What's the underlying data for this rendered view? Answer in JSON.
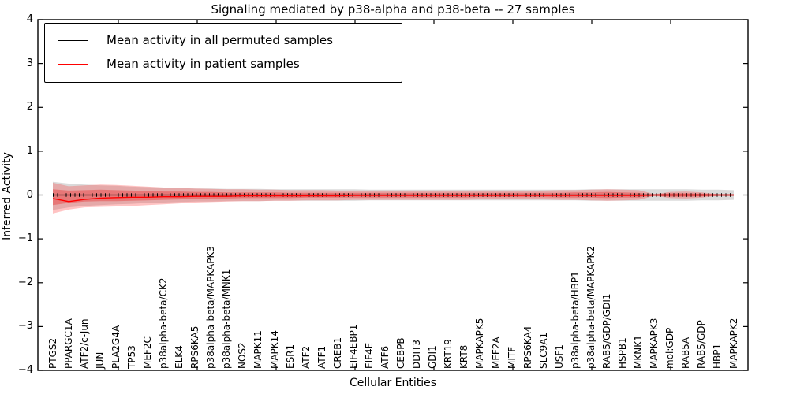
{
  "title": "Signaling mediated by p38-alpha and p38-beta -- 27 samples",
  "y_axis": {
    "label": "Inferred Activity",
    "lim": [
      -4,
      4
    ],
    "tick_values": [
      4,
      3,
      2,
      1,
      0,
      -1,
      -2,
      -3,
      -4
    ],
    "tick_labels": [
      "4",
      "3",
      "2",
      "1",
      "0",
      "−1",
      "−2",
      "−3",
      "−4"
    ]
  },
  "x_axis": {
    "label": "Cellular Entities"
  },
  "legend": {
    "items": [
      {
        "label": "Mean activity in all permuted samples",
        "color": "#000000"
      },
      {
        "label": "Mean activity in patient samples",
        "color": "#ff0000"
      }
    ]
  },
  "colors": {
    "frame": "#000000",
    "permuted_line": "#000000",
    "patient_line": "#ff0000",
    "permuted_band": "rgba(150,150,150,0.35)",
    "patient_band_outer": "rgba(255,55,55,0.30)",
    "patient_band_inner": "rgba(235,45,45,0.40)"
  },
  "chart_data": {
    "type": "line",
    "title": "Signaling mediated by p38-alpha and p38-beta -- 27 samples",
    "xlabel": "Cellular Entities",
    "ylabel": "Inferred Activity",
    "ylim": [
      -4,
      4
    ],
    "grid": false,
    "legend_position": "upper left",
    "categories": [
      "PTGS2",
      "PPARGC1A",
      "ATF2/c-Jun",
      "JUN",
      "PLA2G4A",
      "TP53",
      "MEF2C",
      "p38alpha-beta/CK2",
      "ELK4",
      "RPS6KA5",
      "p38alpha-beta/MAPKAPK3",
      "p38alpha-beta/MNK1",
      "NOS2",
      "MAPK11",
      "MAPK14",
      "ESR1",
      "ATF2",
      "ATF1",
      "CREB1",
      "EIF4EBP1",
      "EIF4E",
      "ATF6",
      "CEBPB",
      "DDIT3",
      "GDI1",
      "KRT19",
      "KRT8",
      "MAPKAPK5",
      "MEF2A",
      "MITF",
      "RPS6KA4",
      "SLC9A1",
      "USF1",
      "p38alpha-beta/HBP1",
      "p38alpha-beta/MAPKAPK2",
      "RAB5/GDP/GDI1",
      "HSPB1",
      "MKNK1",
      "MAPKAPK3",
      "mol:GDP",
      "RAB5A",
      "RAB5/GDP",
      "HBP1",
      "MAPKAPK2"
    ],
    "series": [
      {
        "name": "Mean activity in all permuted samples",
        "color": "#000000",
        "values": [
          0,
          0,
          0,
          0,
          0,
          0,
          0,
          0,
          0,
          0,
          0,
          0,
          0,
          0,
          0,
          0,
          0,
          0,
          0,
          0,
          0,
          0,
          0,
          0,
          0,
          0,
          0,
          0,
          0,
          0,
          0,
          0,
          0,
          0,
          0,
          0,
          0,
          0,
          0,
          0,
          0,
          0,
          0,
          0
        ]
      },
      {
        "name": "Mean activity in patient samples",
        "color": "#ff0000",
        "values": [
          -0.08,
          -0.15,
          -0.1,
          -0.07,
          -0.06,
          -0.05,
          -0.05,
          -0.04,
          -0.04,
          -0.03,
          -0.03,
          -0.03,
          -0.02,
          -0.02,
          -0.02,
          -0.02,
          -0.02,
          -0.02,
          -0.02,
          -0.01,
          -0.01,
          -0.01,
          -0.01,
          -0.01,
          -0.01,
          -0.01,
          -0.01,
          -0.01,
          -0.01,
          -0.01,
          -0.01,
          -0.01,
          -0.01,
          -0.01,
          -0.01,
          -0.01,
          -0.01,
          -0.01,
          0.0,
          0.0,
          0.0,
          0.0,
          0.0,
          0.0
        ]
      }
    ],
    "bands": [
      {
        "name": "permuted-samples-range",
        "color": "rgba(150,150,150,0.35)",
        "upper": [
          0.3,
          0.26,
          0.24,
          0.22,
          0.21,
          0.19,
          0.18,
          0.17,
          0.16,
          0.15,
          0.15,
          0.14,
          0.14,
          0.14,
          0.13,
          0.13,
          0.13,
          0.13,
          0.13,
          0.13,
          0.12,
          0.12,
          0.12,
          0.12,
          0.12,
          0.12,
          0.12,
          0.12,
          0.12,
          0.12,
          0.12,
          0.12,
          0.12,
          0.12,
          0.13,
          0.13,
          0.13,
          0.13,
          0.13,
          0.13,
          0.13,
          0.12,
          0.12,
          0.11
        ],
        "lower": [
          -0.34,
          -0.28,
          -0.25,
          -0.23,
          -0.21,
          -0.2,
          -0.18,
          -0.17,
          -0.16,
          -0.15,
          -0.15,
          -0.14,
          -0.14,
          -0.14,
          -0.13,
          -0.13,
          -0.13,
          -0.13,
          -0.13,
          -0.13,
          -0.12,
          -0.12,
          -0.12,
          -0.12,
          -0.12,
          -0.12,
          -0.12,
          -0.12,
          -0.12,
          -0.12,
          -0.12,
          -0.12,
          -0.12,
          -0.12,
          -0.13,
          -0.13,
          -0.13,
          -0.13,
          -0.13,
          -0.13,
          -0.13,
          -0.12,
          -0.12,
          -0.11
        ]
      },
      {
        "name": "patient-samples-outer-band",
        "color": "rgba(255,55,55,0.30)",
        "upper": [
          0.28,
          0.2,
          0.22,
          0.24,
          0.23,
          0.21,
          0.19,
          0.17,
          0.16,
          0.15,
          0.14,
          0.13,
          0.13,
          0.12,
          0.12,
          0.11,
          0.11,
          0.11,
          0.1,
          0.1,
          0.1,
          0.1,
          0.1,
          0.1,
          0.1,
          0.1,
          0.1,
          0.1,
          0.1,
          0.1,
          0.1,
          0.1,
          0.11,
          0.11,
          0.12,
          0.13,
          0.12,
          0.11,
          0.02,
          0.07,
          0.08,
          0.06,
          0.02,
          0.02
        ],
        "lower": [
          -0.42,
          -0.33,
          -0.28,
          -0.27,
          -0.26,
          -0.25,
          -0.23,
          -0.21,
          -0.19,
          -0.17,
          -0.16,
          -0.15,
          -0.14,
          -0.14,
          -0.13,
          -0.13,
          -0.12,
          -0.12,
          -0.12,
          -0.11,
          -0.11,
          -0.11,
          -0.11,
          -0.11,
          -0.11,
          -0.11,
          -0.11,
          -0.1,
          -0.1,
          -0.1,
          -0.1,
          -0.1,
          -0.11,
          -0.11,
          -0.12,
          -0.13,
          -0.12,
          -0.11,
          -0.02,
          -0.07,
          -0.08,
          -0.06,
          -0.02,
          -0.02
        ]
      },
      {
        "name": "patient-samples-inner-band",
        "color": "rgba(235,45,45,0.40)",
        "upper": [
          0.13,
          0.1,
          0.11,
          0.12,
          0.11,
          0.1,
          0.09,
          0.08,
          0.08,
          0.07,
          0.07,
          0.06,
          0.06,
          0.06,
          0.06,
          0.05,
          0.05,
          0.05,
          0.05,
          0.05,
          0.05,
          0.05,
          0.05,
          0.05,
          0.05,
          0.05,
          0.05,
          0.05,
          0.05,
          0.05,
          0.05,
          0.05,
          0.05,
          0.06,
          0.06,
          0.07,
          0.06,
          0.05,
          0.01,
          0.04,
          0.04,
          0.03,
          0.01,
          0.01
        ],
        "lower": [
          -0.23,
          -0.18,
          -0.15,
          -0.14,
          -0.14,
          -0.13,
          -0.12,
          -0.11,
          -0.1,
          -0.09,
          -0.08,
          -0.08,
          -0.07,
          -0.07,
          -0.07,
          -0.07,
          -0.06,
          -0.06,
          -0.06,
          -0.06,
          -0.06,
          -0.06,
          -0.06,
          -0.06,
          -0.06,
          -0.06,
          -0.06,
          -0.05,
          -0.05,
          -0.05,
          -0.05,
          -0.05,
          -0.06,
          -0.06,
          -0.06,
          -0.07,
          -0.06,
          -0.06,
          -0.01,
          -0.04,
          -0.04,
          -0.03,
          -0.01,
          -0.01
        ]
      }
    ]
  }
}
